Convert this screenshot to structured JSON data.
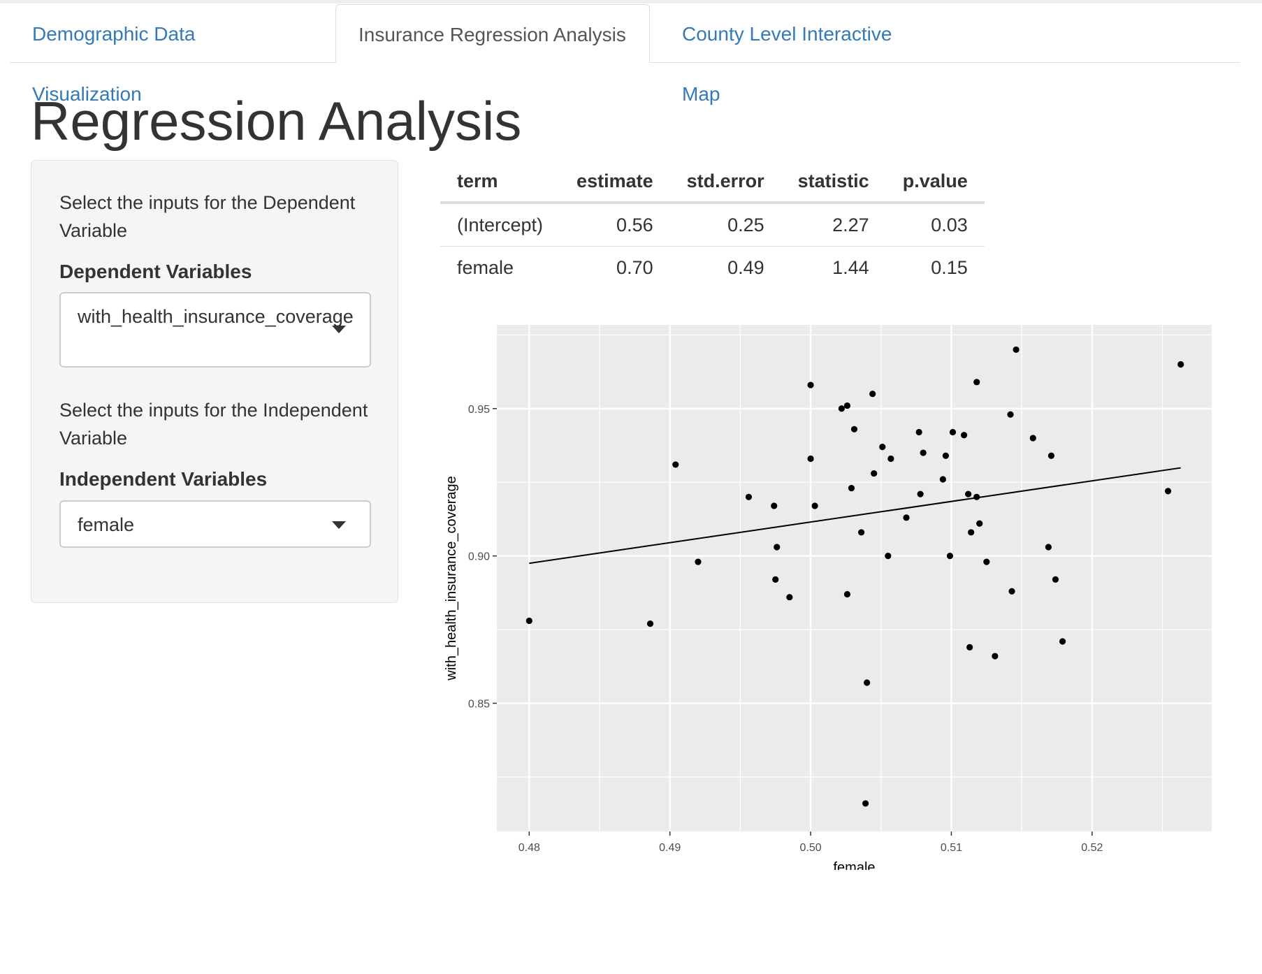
{
  "tabs": [
    {
      "label": "Demographic Data Visualization",
      "active": false
    },
    {
      "label": "Insurance Regression Analysis",
      "active": true
    },
    {
      "label": "County Level Interactive Map",
      "active": false
    }
  ],
  "page_title": "Regression Analysis",
  "sidebar": {
    "dependent_help": "Select the inputs for the Dependent Variable",
    "dependent_label": "Dependent Variables",
    "dependent_value": "with_health_insurance_coverage",
    "independent_help": "Select the inputs for the Independent Variable",
    "independent_label": "Independent Variables",
    "independent_value": "female"
  },
  "regression_table": {
    "headers": [
      "term",
      "estimate",
      "std.error",
      "statistic",
      "p.value"
    ],
    "rows": [
      [
        "(Intercept)",
        "0.56",
        "0.25",
        "2.27",
        "0.03"
      ],
      [
        "female",
        "0.70",
        "0.49",
        "1.44",
        "0.15"
      ]
    ]
  },
  "chart_data": {
    "type": "scatter",
    "xlabel": "female",
    "ylabel": "with_health_insurance_coverage",
    "xlim": [
      0.4777,
      0.5285
    ],
    "ylim": [
      0.8065,
      0.9784
    ],
    "x_ticks": [
      "0.48",
      "0.49",
      "0.50",
      "0.51",
      "0.52"
    ],
    "x_tick_values": [
      0.48,
      0.49,
      0.5,
      0.51,
      0.52
    ],
    "y_ticks": [
      "0.85",
      "0.90",
      "0.95"
    ],
    "y_tick_values": [
      0.85,
      0.9,
      0.95
    ],
    "grid": true,
    "panel_color": "#ebebeb",
    "point_color": "#000000",
    "fit_line": {
      "x": [
        0.48,
        0.5263
      ],
      "y": [
        0.8975,
        0.9299
      ]
    },
    "points": [
      [
        0.48,
        0.878
      ],
      [
        0.4886,
        0.877
      ],
      [
        0.4904,
        0.931
      ],
      [
        0.492,
        0.898
      ],
      [
        0.4956,
        0.92
      ],
      [
        0.4974,
        0.917
      ],
      [
        0.4975,
        0.892
      ],
      [
        0.4976,
        0.903
      ],
      [
        0.4985,
        0.886
      ],
      [
        0.5,
        0.958
      ],
      [
        0.5,
        0.933
      ],
      [
        0.5003,
        0.917
      ],
      [
        0.5022,
        0.95
      ],
      [
        0.5026,
        0.951
      ],
      [
        0.5026,
        0.887
      ],
      [
        0.5029,
        0.923
      ],
      [
        0.5031,
        0.943
      ],
      [
        0.5036,
        0.908
      ],
      [
        0.5039,
        0.816
      ],
      [
        0.504,
        0.857
      ],
      [
        0.5044,
        0.955
      ],
      [
        0.5045,
        0.928
      ],
      [
        0.5051,
        0.937
      ],
      [
        0.5055,
        0.9
      ],
      [
        0.5057,
        0.933
      ],
      [
        0.5068,
        0.913
      ],
      [
        0.5077,
        0.942
      ],
      [
        0.5078,
        0.921
      ],
      [
        0.508,
        0.935
      ],
      [
        0.5094,
        0.926
      ],
      [
        0.5096,
        0.934
      ],
      [
        0.5099,
        0.9
      ],
      [
        0.5101,
        0.942
      ],
      [
        0.5109,
        0.941
      ],
      [
        0.5112,
        0.921
      ],
      [
        0.5113,
        0.869
      ],
      [
        0.5114,
        0.908
      ],
      [
        0.5118,
        0.92
      ],
      [
        0.5118,
        0.959
      ],
      [
        0.512,
        0.911
      ],
      [
        0.5125,
        0.898
      ],
      [
        0.5131,
        0.866
      ],
      [
        0.5142,
        0.948
      ],
      [
        0.5143,
        0.888
      ],
      [
        0.5146,
        0.97
      ],
      [
        0.5158,
        0.94
      ],
      [
        0.5169,
        0.903
      ],
      [
        0.5171,
        0.934
      ],
      [
        0.5174,
        0.892
      ],
      [
        0.5179,
        0.871
      ],
      [
        0.5254,
        0.922
      ],
      [
        0.5263,
        0.965
      ]
    ]
  }
}
